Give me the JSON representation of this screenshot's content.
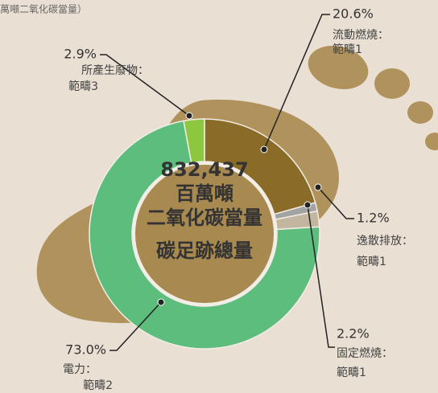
{
  "chart_data": {
    "type": "donut",
    "note": "萬噸二氧化碳當量）",
    "center_lines": [
      "832,437",
      "百萬噸",
      "二氧化碳當量",
      "碳足跡總量"
    ],
    "categories": [
      "流動燃燒：",
      "逸散排放：",
      "固定燃燒：",
      "電力：",
      "所產生廢物："
    ],
    "scopes": [
      "範疇1",
      "範疇1",
      "範疇1",
      "範疇2",
      "範疇3"
    ],
    "values": [
      20.6,
      1.2,
      2.2,
      73.0,
      2.9
    ],
    "value_labels": [
      "20.6%",
      "1.2%",
      "2.2%",
      "73.0%",
      "2.9%"
    ],
    "colors": [
      "#8a6c28",
      "#a3a3a3",
      "#c2b69e",
      "#5dbd7d",
      "#8dc63f"
    ]
  }
}
